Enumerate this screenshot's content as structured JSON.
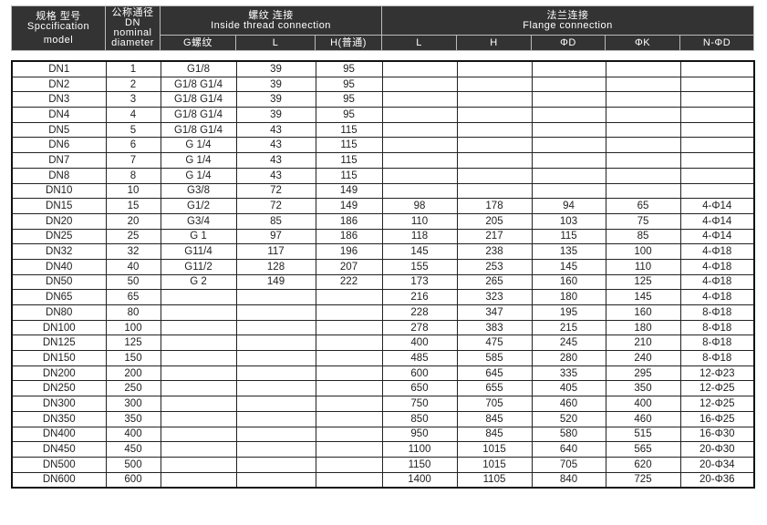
{
  "header": {
    "model": {
      "cn": "规格 型号",
      "en1": "Spccification",
      "en2": "model"
    },
    "dn": {
      "cn": "公称通径",
      "en1": "DN",
      "en2": "nominal",
      "en3": "diameter"
    },
    "thread": {
      "cn": "螺纹 连接",
      "en": "Inside thread connection",
      "cols": [
        "G螺纹",
        "L",
        "H(普通)"
      ]
    },
    "flange": {
      "cn": "法兰连接",
      "en": "Flange connection",
      "cols": [
        "L",
        "H",
        "ΦD",
        "ΦK",
        "N-ΦD"
      ]
    }
  },
  "colors": {
    "header_bg": "#333333",
    "header_text": "#ffffff",
    "border": "#222222"
  },
  "rows": [
    [
      "DN1",
      "1",
      "G1/8",
      "39",
      "95",
      "",
      "",
      "",
      "",
      ""
    ],
    [
      "DN2",
      "2",
      "G1/8 G1/4",
      "39",
      "95",
      "",
      "",
      "",
      "",
      ""
    ],
    [
      "DN3",
      "3",
      "G1/8 G1/4",
      "39",
      "95",
      "",
      "",
      "",
      "",
      ""
    ],
    [
      "DN4",
      "4",
      "G1/8 G1/4",
      "39",
      "95",
      "",
      "",
      "",
      "",
      ""
    ],
    [
      "DN5",
      "5",
      "G1/8 G1/4",
      "43",
      "115",
      "",
      "",
      "",
      "",
      ""
    ],
    [
      "DN6",
      "6",
      "G 1/4",
      "43",
      "115",
      "",
      "",
      "",
      "",
      ""
    ],
    [
      "DN7",
      "7",
      "G 1/4",
      "43",
      "115",
      "",
      "",
      "",
      "",
      ""
    ],
    [
      "DN8",
      "8",
      "G 1/4",
      "43",
      "115",
      "",
      "",
      "",
      "",
      ""
    ],
    [
      "DN10",
      "10",
      "G3/8",
      "72",
      "149",
      "",
      "",
      "",
      "",
      ""
    ],
    [
      "DN15",
      "15",
      "G1/2",
      "72",
      "149",
      "98",
      "178",
      "94",
      "65",
      "4-Φ14"
    ],
    [
      "DN20",
      "20",
      "G3/4",
      "85",
      "186",
      "110",
      "205",
      "103",
      "75",
      "4-Φ14"
    ],
    [
      "DN25",
      "25",
      "G 1",
      "97",
      "186",
      "118",
      "217",
      "115",
      "85",
      "4-Φ14"
    ],
    [
      "DN32",
      "32",
      "G11/4",
      "117",
      "196",
      "145",
      "238",
      "135",
      "100",
      "4-Φ18"
    ],
    [
      "DN40",
      "40",
      "G11/2",
      "128",
      "207",
      "155",
      "253",
      "145",
      "110",
      "4-Φ18"
    ],
    [
      "DN50",
      "50",
      "G 2",
      "149",
      "222",
      "173",
      "265",
      "160",
      "125",
      "4-Φ18"
    ],
    [
      "DN65",
      "65",
      "",
      "",
      "",
      "216",
      "323",
      "180",
      "145",
      "4-Φ18"
    ],
    [
      "DN80",
      "80",
      "",
      "",
      "",
      "228",
      "347",
      "195",
      "160",
      "8-Φ18"
    ],
    [
      "DN100",
      "100",
      "",
      "",
      "",
      "278",
      "383",
      "215",
      "180",
      "8-Φ18"
    ],
    [
      "DN125",
      "125",
      "",
      "",
      "",
      "400",
      "475",
      "245",
      "210",
      "8-Φ18"
    ],
    [
      "DN150",
      "150",
      "",
      "",
      "",
      "485",
      "585",
      "280",
      "240",
      "8-Φ18"
    ],
    [
      "DN200",
      "200",
      "",
      "",
      "",
      "600",
      "645",
      "335",
      "295",
      "12-Φ23"
    ],
    [
      "DN250",
      "250",
      "",
      "",
      "",
      "650",
      "655",
      "405",
      "350",
      "12-Φ25"
    ],
    [
      "DN300",
      "300",
      "",
      "",
      "",
      "750",
      "705",
      "460",
      "400",
      "12-Φ25"
    ],
    [
      "DN350",
      "350",
      "",
      "",
      "",
      "850",
      "845",
      "520",
      "460",
      "16-Φ25"
    ],
    [
      "DN400",
      "400",
      "",
      "",
      "",
      "950",
      "845",
      "580",
      "515",
      "16-Φ30"
    ],
    [
      "DN450",
      "450",
      "",
      "",
      "",
      "1100",
      "1015",
      "640",
      "565",
      "20-Φ30"
    ],
    [
      "DN500",
      "500",
      "",
      "",
      "",
      "1150",
      "1015",
      "705",
      "620",
      "20-Φ34"
    ],
    [
      "DN600",
      "600",
      "",
      "",
      "",
      "1400",
      "1105",
      "840",
      "725",
      "20-Φ36"
    ]
  ]
}
